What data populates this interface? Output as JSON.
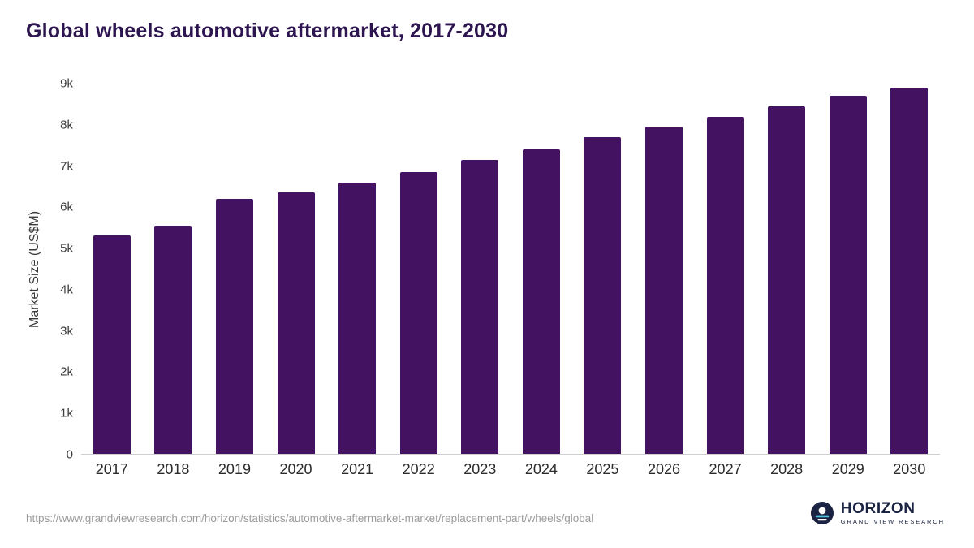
{
  "chart_data": {
    "type": "bar",
    "title": "Global wheels automotive aftermarket, 2017-2030",
    "xlabel": "",
    "ylabel": "Market Size (US$M)",
    "categories": [
      "2017",
      "2018",
      "2019",
      "2020",
      "2021",
      "2022",
      "2023",
      "2024",
      "2025",
      "2026",
      "2027",
      "2028",
      "2029",
      "2030"
    ],
    "values": [
      5300,
      5550,
      6200,
      6350,
      6600,
      6850,
      7150,
      7400,
      7700,
      7950,
      8200,
      8450,
      8700,
      8900
    ],
    "ylim": [
      0,
      9000
    ],
    "ytick_values": [
      0,
      1000,
      2000,
      3000,
      4000,
      5000,
      6000,
      7000,
      8000,
      9000
    ],
    "ytick_labels": [
      "0",
      "1k",
      "2k",
      "3k",
      "4k",
      "5k",
      "6k",
      "7k",
      "8k",
      "9k"
    ],
    "bar_color": "#431361",
    "grid": false,
    "legend": false
  },
  "footer": {
    "source_url": "https://www.grandviewresearch.com/horizon/statistics/automotive-aftermarket-market/replacement-part/wheels/global",
    "logo": {
      "name": "HORIZON",
      "subtitle": "GRAND VIEW RESEARCH"
    }
  },
  "colors": {
    "title_text": "#2d1650",
    "axis_text": "#3c3c3c",
    "source_text": "#9b9b9b",
    "logo_navy": "#1b2342",
    "logo_teal": "#4fc3d9"
  }
}
